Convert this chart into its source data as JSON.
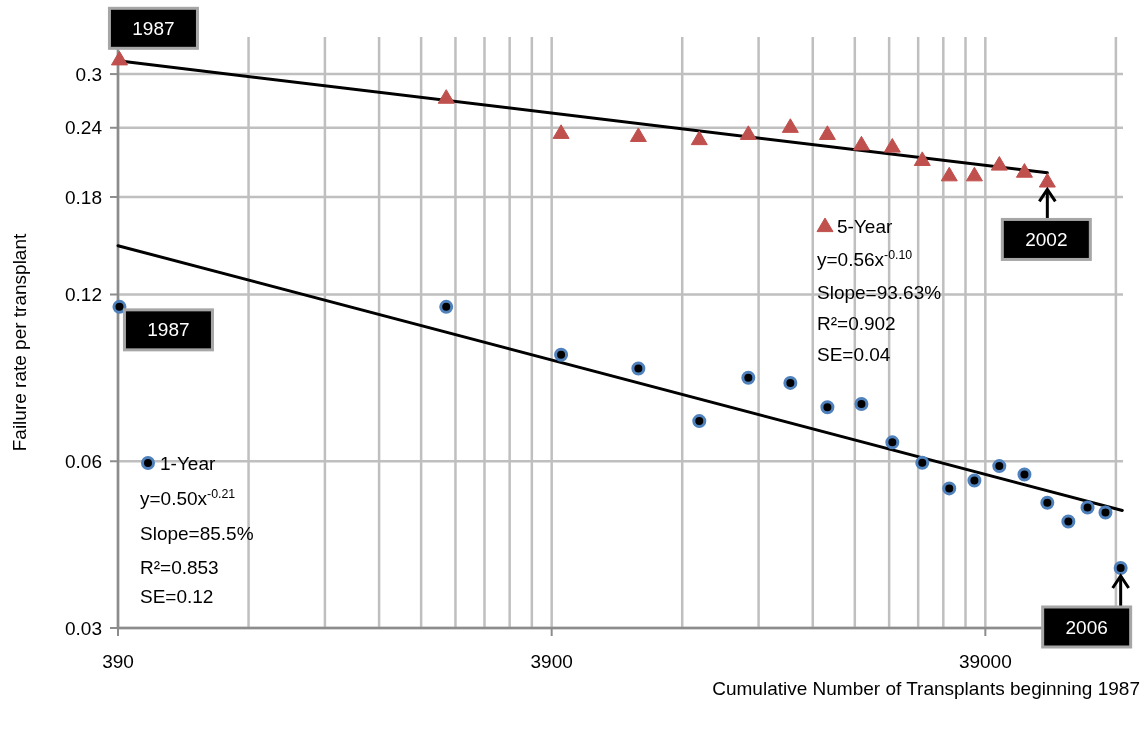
{
  "chart_data": {
    "type": "scatter",
    "xlabel": "Cumulative Number of Transplants beginning 1987",
    "ylabel": "Failure rate per transplant",
    "log": "xy",
    "grid": true,
    "legend": "bottom left",
    "xlim": [
      390,
      81000
    ],
    "ylim": [
      0.03,
      0.35
    ],
    "xticks": [
      390,
      {
        "value": 780,
        "label": null
      },
      {
        "value": 1170,
        "label": null
      },
      {
        "value": 1560,
        "label": null
      },
      {
        "value": 1950,
        "label": null
      },
      {
        "value": 2340,
        "label": null
      },
      {
        "value": 2730,
        "label": null
      },
      {
        "value": 3120,
        "label": null
      },
      {
        "value": 3510,
        "label": null
      },
      3900,
      {
        "value": 7800,
        "label": null
      },
      {
        "value": 11700,
        "label": null
      },
      {
        "value": 15600,
        "label": null
      },
      {
        "value": 19500,
        "label": null
      },
      {
        "value": 23400,
        "label": null
      },
      {
        "value": 27300,
        "label": null
      },
      {
        "value": 31200,
        "label": null
      },
      {
        "value": 35100,
        "label": null
      },
      39000,
      {
        "value": 78000,
        "label": null
      }
    ],
    "yticks": [
      0.03,
      0.06,
      0.12,
      0.18,
      0.24,
      0.3
    ],
    "series": [
      {
        "name": "5-Year",
        "marker": "triangle",
        "color": "#c0504d",
        "x": [
          393,
          2228,
          4100,
          6180,
          8540,
          11080,
          13850,
          16860,
          20200,
          23800,
          27900,
          32200,
          36800,
          42000,
          48000,
          54200
        ],
        "values": [
          0.319,
          0.272,
          0.235,
          0.232,
          0.229,
          0.234,
          0.241,
          0.234,
          0.224,
          0.222,
          0.21,
          0.197,
          0.197,
          0.206,
          0.2,
          0.192
        ]
      },
      {
        "name": "1-Year",
        "marker": "circle",
        "color": "#4f81bd",
        "x": [
          393,
          2228,
          4100,
          6180,
          8540,
          11080,
          13850,
          16860,
          20200,
          23800,
          27900,
          32200,
          36800,
          42000,
          48000,
          54200,
          60600,
          67100,
          73800,
          80000
        ],
        "values": [
          0.114,
          0.114,
          0.0934,
          0.0882,
          0.0709,
          0.0849,
          0.0831,
          0.0751,
          0.0761,
          0.0649,
          0.0596,
          0.0536,
          0.0554,
          0.0588,
          0.0568,
          0.0505,
          0.0467,
          0.0495,
          0.0485,
          0.0385
        ]
      },
      {
        "type": "line",
        "marker": "none",
        "line_style": "solid",
        "color": "#000000",
        "x": [
          390,
          54200
        ],
        "values": [
          0.317,
          0.199
        ]
      },
      {
        "type": "line",
        "marker": "none",
        "line_style": "solid",
        "color": "#000000",
        "x": [
          390,
          80700
        ],
        "values": [
          0.147,
          0.0489
        ]
      }
    ],
    "annotations": [
      {
        "text": "1987",
        "x": 393,
        "y": 0.319
      },
      {
        "text": "1987",
        "x": 393,
        "y": 0.114
      },
      {
        "text": "2002",
        "x": 54200,
        "y": 0.192
      },
      {
        "text": "2006",
        "x": 80000,
        "y": 0.0385
      },
      "y=0.56x$^{-0.10}$",
      "Slope=93.63%",
      "R²=0.902",
      "SE=0.04",
      "y=0.50x$^{-0.21}$",
      "Slope=85.5%",
      "R²=0.853",
      "SE=0.12"
    ]
  }
}
